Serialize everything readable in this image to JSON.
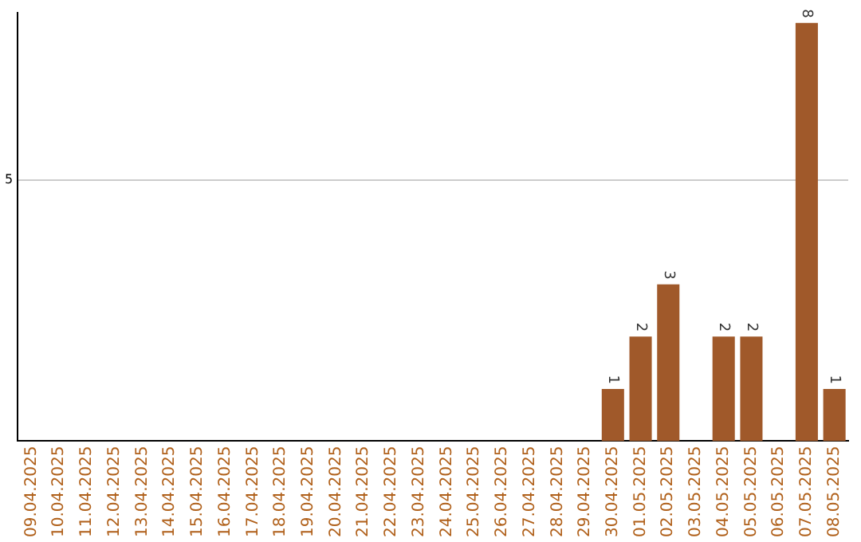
{
  "chart_data": {
    "type": "bar",
    "categories": [
      "09.04.2025",
      "10.04.2025",
      "11.04.2025",
      "12.04.2025",
      "13.04.2025",
      "14.04.2025",
      "15.04.2025",
      "16.04.2025",
      "17.04.2025",
      "18.04.2025",
      "19.04.2025",
      "20.04.2025",
      "21.04.2025",
      "22.04.2025",
      "23.04.2025",
      "24.04.2025",
      "25.04.2025",
      "26.04.2025",
      "27.04.2025",
      "28.04.2025",
      "29.04.2025",
      "30.04.2025",
      "01.05.2025",
      "02.05.2025",
      "03.05.2025",
      "04.05.2025",
      "05.05.2025",
      "06.05.2025",
      "07.05.2025",
      "08.05.2025"
    ],
    "values": [
      null,
      null,
      null,
      null,
      null,
      null,
      null,
      null,
      null,
      null,
      null,
      null,
      null,
      null,
      null,
      null,
      null,
      null,
      null,
      null,
      null,
      1,
      2,
      3,
      null,
      2,
      2,
      null,
      8,
      1
    ],
    "color": "#a0592a",
    "ylim": [
      0,
      8.2
    ],
    "yticks": [
      5
    ],
    "grid": "y",
    "data_labels": true,
    "legend": false
  }
}
